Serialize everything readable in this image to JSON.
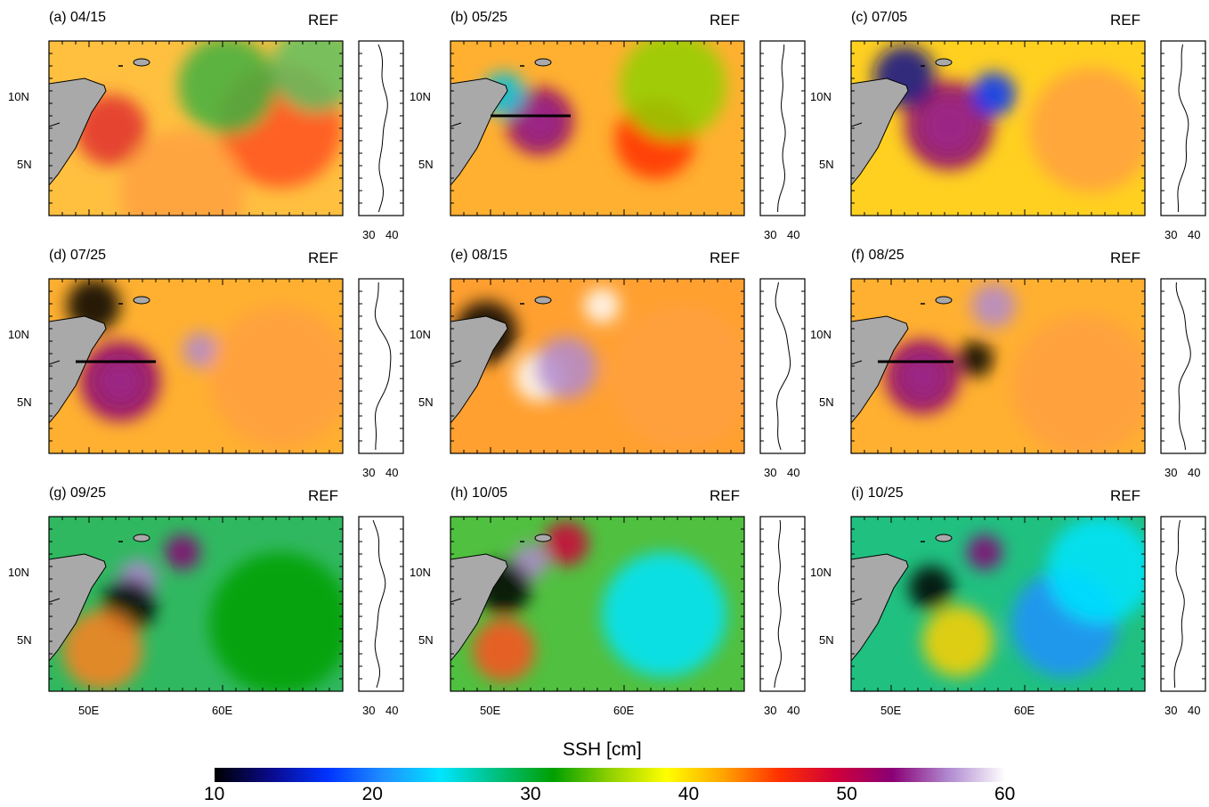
{
  "figure": {
    "ref_label": "REF",
    "x_tick_labels": [
      "50E",
      "60E"
    ],
    "y_tick_labels": [
      "10N",
      "5N"
    ],
    "profile_tick_labels": [
      "30",
      "40"
    ],
    "panels": [
      {
        "title": "(a) 04/15",
        "section_line": false
      },
      {
        "title": "(b) 05/25",
        "section_line": true
      },
      {
        "title": "(c) 07/05",
        "section_line": false
      },
      {
        "title": "(d) 07/25",
        "section_line": true
      },
      {
        "title": "(e) 08/15",
        "section_line": false
      },
      {
        "title": "(f) 08/25",
        "section_line": true
      },
      {
        "title": "(g) 09/25",
        "section_line": false
      },
      {
        "title": "(h) 10/05",
        "section_line": false
      },
      {
        "title": "(i) 10/25",
        "section_line": false
      }
    ]
  },
  "colorbar": {
    "title": "SSH [cm]",
    "min": 10,
    "max": 60,
    "tick_labels": [
      "10",
      "20",
      "30",
      "40",
      "50",
      "60"
    ],
    "colors": [
      "#000000",
      "#0a0a8c",
      "#0033ff",
      "#1e90ff",
      "#00e5ff",
      "#00c080",
      "#00a000",
      "#90d000",
      "#ffff00",
      "#ffa500",
      "#ff3000",
      "#d0003a",
      "#8a0075",
      "#b08ad0",
      "#ffffff"
    ]
  },
  "colors": {
    "land": "#a9a9a9",
    "frame": "#000000"
  }
}
